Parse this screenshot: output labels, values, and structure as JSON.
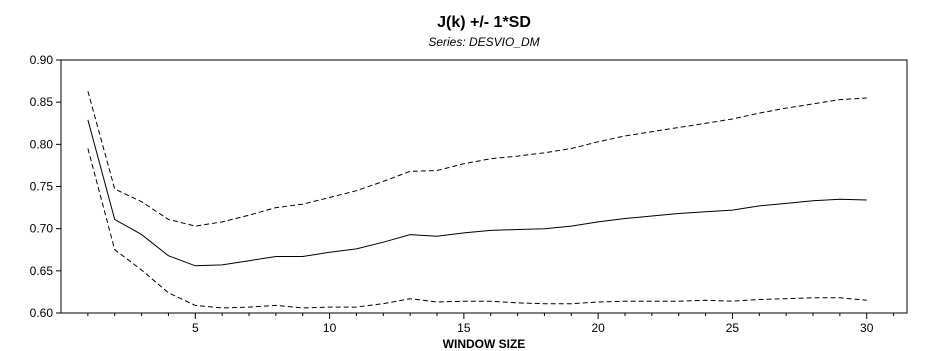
{
  "chart_data": {
    "type": "line",
    "title": "J(k) +/- 1*SD",
    "subtitle": "Series: DESVIO_DM",
    "xlabel": "WINDOW SIZE",
    "ylabel": "",
    "xlim": [
      0,
      31.5
    ],
    "ylim": [
      0.6,
      0.9
    ],
    "x_ticks": [
      5,
      10,
      15,
      20,
      25,
      30
    ],
    "x_tick_labels": [
      "5",
      "10",
      "15",
      "20",
      "25",
      "30"
    ],
    "y_ticks": [
      0.6,
      0.65,
      0.7,
      0.75,
      0.8,
      0.85,
      0.9
    ],
    "y_tick_labels": [
      "0.60",
      "0.65",
      "0.70",
      "0.75",
      "0.80",
      "0.85",
      "0.90"
    ],
    "grid": false,
    "x": [
      1,
      2,
      3,
      4,
      5,
      6,
      7,
      8,
      9,
      10,
      11,
      12,
      13,
      14,
      15,
      16,
      17,
      18,
      19,
      20,
      21,
      22,
      23,
      24,
      25,
      26,
      27,
      28,
      29,
      30
    ],
    "series": [
      {
        "style": "dashed",
        "color": "#000000",
        "values": [
          0.863,
          0.747,
          0.732,
          0.711,
          0.703,
          0.708,
          0.716,
          0.725,
          0.729,
          0.737,
          0.745,
          0.756,
          0.768,
          0.769,
          0.777,
          0.783,
          0.786,
          0.79,
          0.795,
          0.803,
          0.81,
          0.815,
          0.82,
          0.825,
          0.83,
          0.837,
          0.843,
          0.848,
          0.853,
          0.855
        ]
      },
      {
        "style": "solid",
        "color": "#000000",
        "values": [
          0.829,
          0.711,
          0.693,
          0.668,
          0.656,
          0.657,
          0.662,
          0.667,
          0.667,
          0.672,
          0.676,
          0.684,
          0.693,
          0.691,
          0.695,
          0.698,
          0.699,
          0.7,
          0.703,
          0.708,
          0.712,
          0.715,
          0.718,
          0.72,
          0.722,
          0.727,
          0.73,
          0.733,
          0.735,
          0.734
        ]
      },
      {
        "style": "dashed",
        "color": "#000000",
        "values": [
          0.795,
          0.675,
          0.651,
          0.624,
          0.609,
          0.606,
          0.607,
          0.609,
          0.606,
          0.607,
          0.607,
          0.611,
          0.617,
          0.613,
          0.614,
          0.614,
          0.612,
          0.611,
          0.611,
          0.613,
          0.614,
          0.614,
          0.614,
          0.615,
          0.614,
          0.616,
          0.617,
          0.618,
          0.618,
          0.615
        ]
      }
    ]
  }
}
